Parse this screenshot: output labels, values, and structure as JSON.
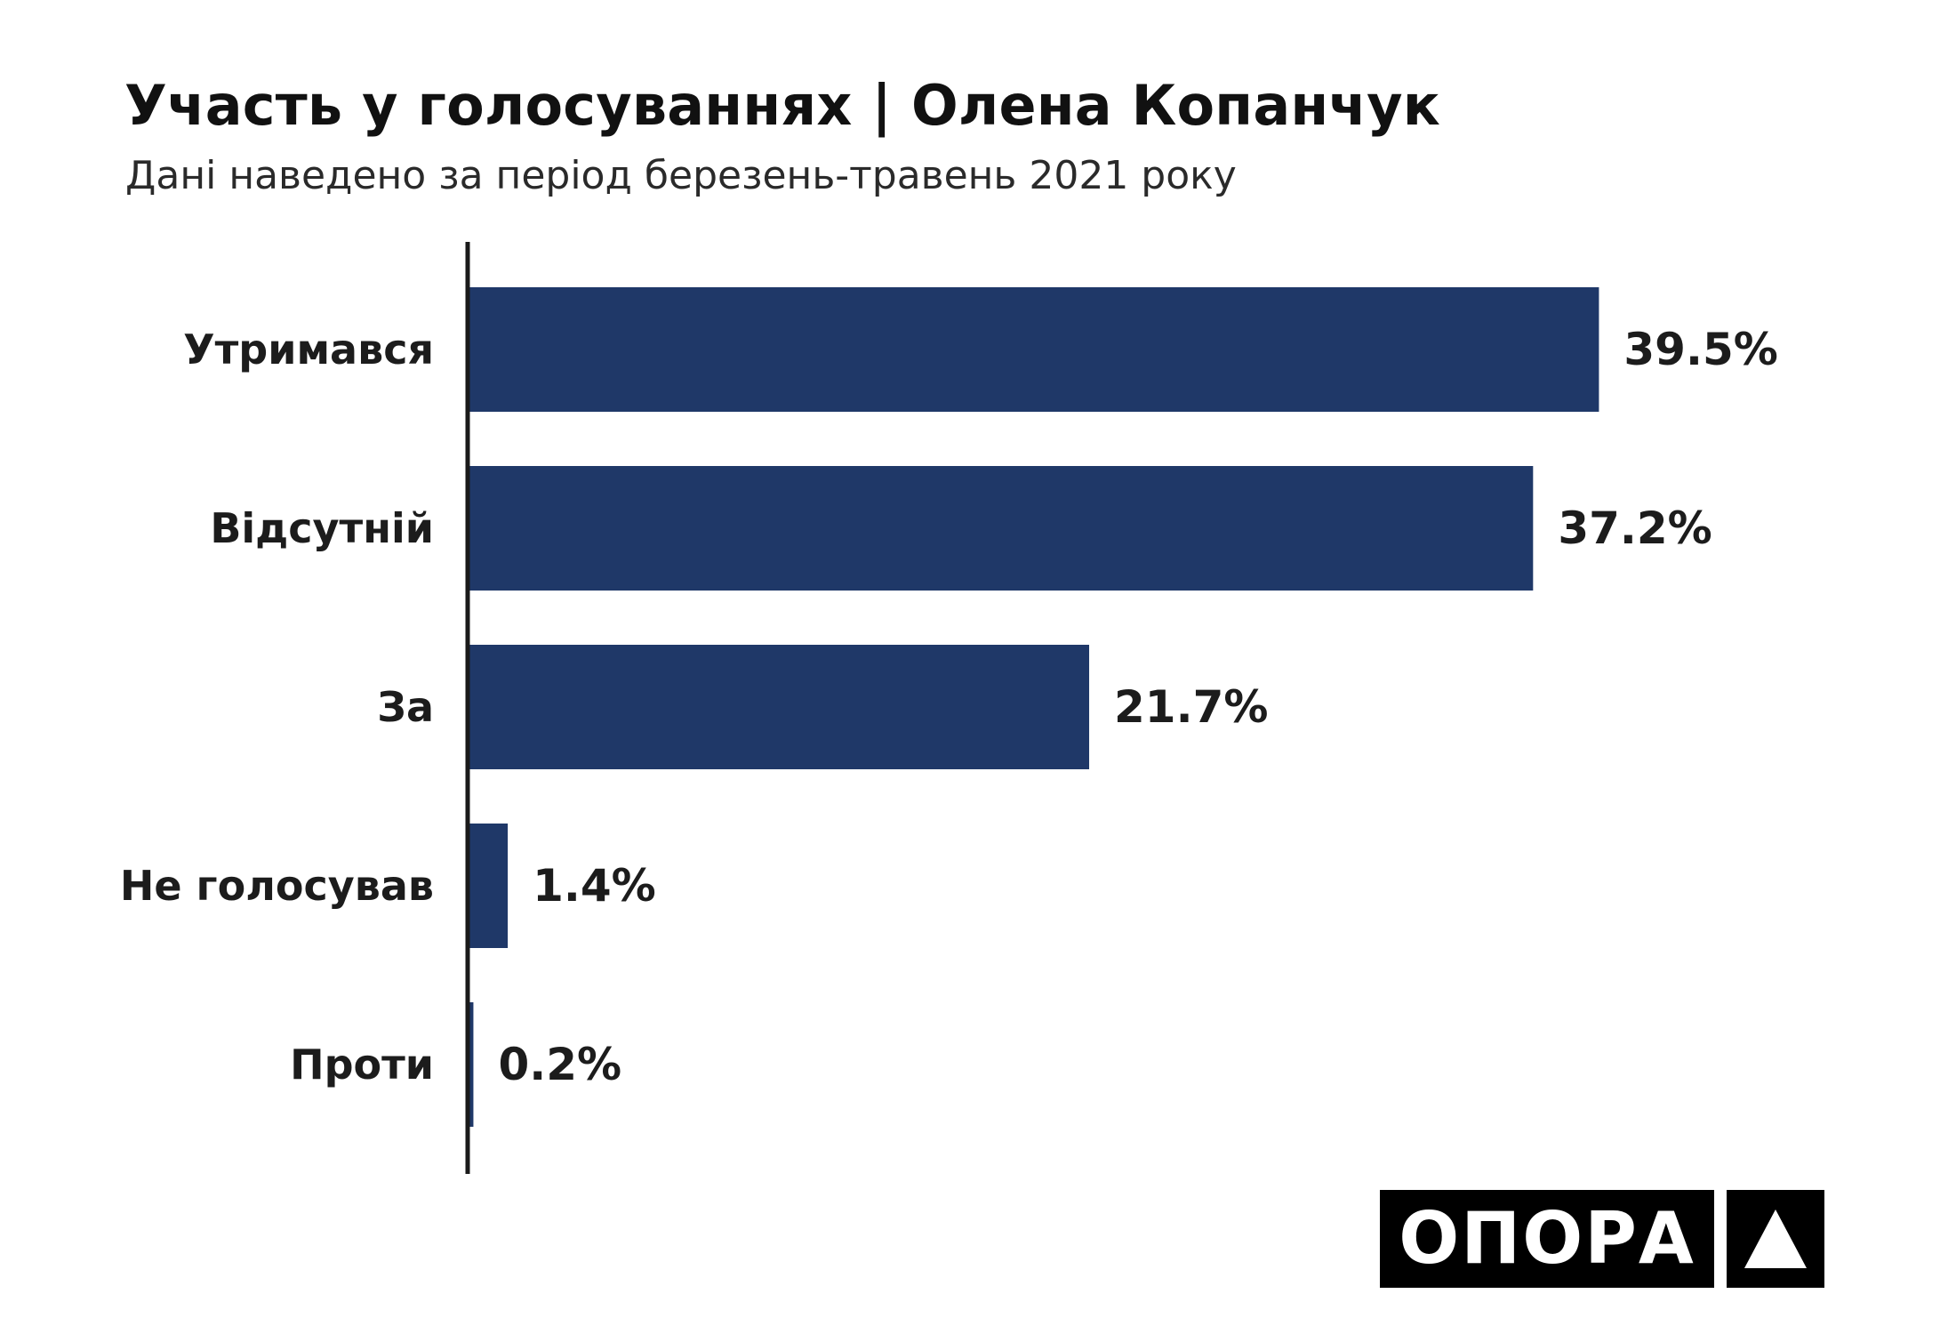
{
  "header": {
    "title": "Участь у голосуваннях | Олена Копанчук",
    "subtitle": "Дані наведено за період березень-травень 2021 року"
  },
  "colors": {
    "bar": "#1f3868",
    "axis": "#1a1a1a",
    "text": "#1c1c1c"
  },
  "chart_data": {
    "type": "bar",
    "orientation": "horizontal",
    "title": "Участь у голосуваннях | Олена Копанчук",
    "subtitle": "Дані наведено за період березень-травень 2021 року",
    "categories": [
      "Утримався",
      "Відсутній",
      "За",
      "Не голосував",
      "Проти"
    ],
    "values": [
      39.5,
      37.2,
      21.7,
      1.4,
      0.2
    ],
    "value_labels": [
      "39.5%",
      "37.2%",
      "21.7%",
      "1.4%",
      "0.2%"
    ],
    "xlim": [
      0,
      47
    ],
    "grid": false,
    "legend": "none"
  },
  "logo": {
    "text": "ОПОРА",
    "icon": "triangle-up-icon"
  }
}
